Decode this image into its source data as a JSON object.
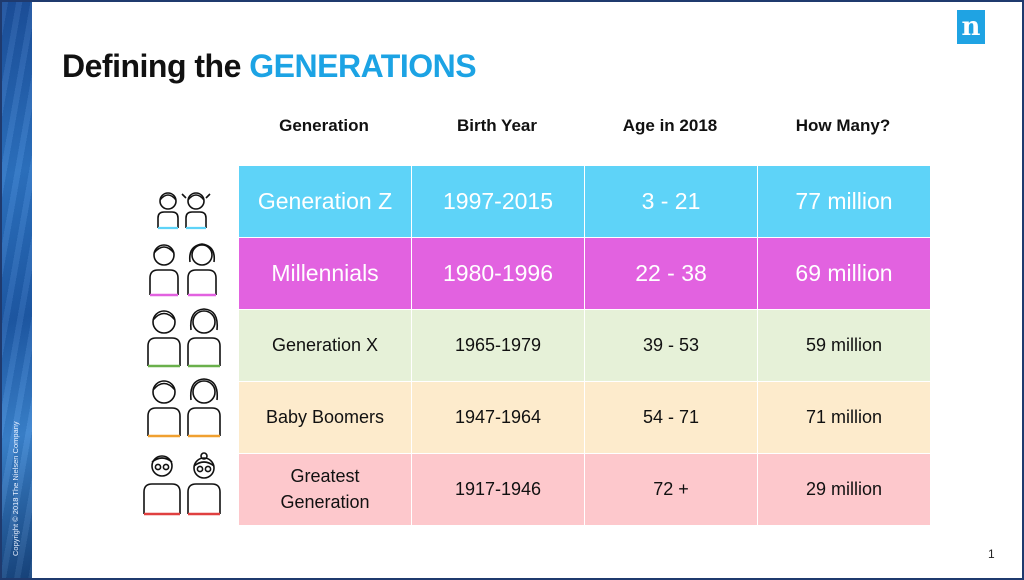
{
  "slide": {
    "title_prefix": "Defining the",
    "title_accent": "GENERATIONS",
    "logo_letter": "n",
    "copyright": "Copyright © 2018 The Nielsen Company",
    "page_number": "1"
  },
  "table": {
    "headers": [
      "Generation",
      "Birth Year",
      "Age in 2018",
      "How Many?"
    ],
    "rows": [
      {
        "generation": "Generation Z",
        "birth_year": "1997-2015",
        "age": "3 - 21",
        "how_many": "77 million",
        "color": "#5ed3f8",
        "icon_color": "#5ed3f8"
      },
      {
        "generation": "Millennials",
        "birth_year": "1980-1996",
        "age": "22 - 38",
        "how_many": "69 million",
        "color": "#e262e0",
        "icon_color": "#e262e0"
      },
      {
        "generation": "Generation X",
        "birth_year": "1965-1979",
        "age": "39 - 53",
        "how_many": "59 million",
        "color": "#e6f1d8",
        "icon_color": "#6ab04c"
      },
      {
        "generation": "Baby Boomers",
        "birth_year": "1947-1964",
        "age": "54 - 71",
        "how_many": "71 million",
        "color": "#fdebcc",
        "icon_color": "#f0a030"
      },
      {
        "generation": "Greatest Generation",
        "birth_year": "1917-1946",
        "age": "72 +",
        "how_many": "29 million",
        "color": "#fdc8cc",
        "icon_color": "#e04040"
      }
    ]
  },
  "colors": {
    "accent": "#1ca3e4",
    "border": "#1f3a6e"
  }
}
